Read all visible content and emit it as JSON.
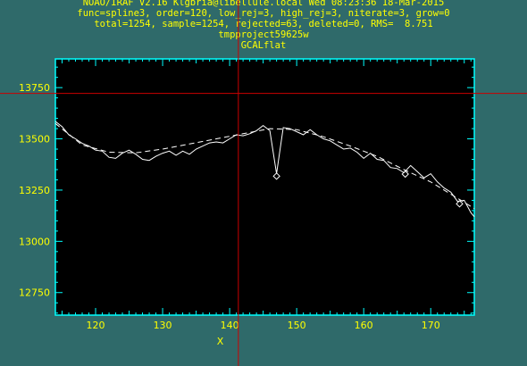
{
  "header": {
    "line1": "NOAO/IRAF V2.16 Klgbria@libellule.local Wed 08:23:36 18-Mar-2015",
    "line2": "func=spline3, order=120, low_rej=3, high_rej=3, niterate=3, grow=0",
    "line3": "total=1254, sample=1254, rejected=63, deleted=0, RMS=  8.751",
    "line4": "tmpproject59625w",
    "line5": "GCALflat"
  },
  "colors": {
    "background": "#2f6a6a",
    "frame": "#00ffff",
    "text": "#ffff00",
    "plot_bg": "#000000",
    "data_line": "#ffffff",
    "cursor": "#cc0000"
  },
  "chart_data": {
    "type": "line",
    "xlabel": "X",
    "ylabel": "",
    "xlim": [
      114,
      176.5
    ],
    "ylim": [
      12640,
      13890
    ],
    "xticks": [
      120,
      130,
      140,
      150,
      160,
      170
    ],
    "yticks": [
      12750,
      13000,
      13250,
      13500,
      13750
    ],
    "grid": false,
    "cursor": {
      "x": 141.3,
      "y": 13722
    },
    "series": [
      {
        "style": "solid",
        "x": [
          114,
          115,
          116,
          117,
          118,
          119,
          120,
          121,
          122,
          123,
          124,
          125,
          126,
          127,
          128,
          129,
          130,
          131,
          132,
          133,
          134,
          135,
          136,
          137,
          138,
          139,
          140,
          141,
          142,
          143,
          144,
          145,
          146,
          147,
          148,
          149,
          150,
          151,
          152,
          153,
          154,
          155,
          156,
          157,
          158,
          159,
          160,
          161,
          162,
          163,
          164,
          165,
          166,
          167,
          168,
          169,
          170,
          171,
          172,
          173,
          174,
          175,
          176,
          176.5
        ],
        "y": [
          13585,
          13560,
          13520,
          13500,
          13478,
          13465,
          13445,
          13440,
          13410,
          13405,
          13430,
          13445,
          13425,
          13400,
          13395,
          13415,
          13430,
          13440,
          13420,
          13440,
          13425,
          13450,
          13465,
          13480,
          13485,
          13480,
          13500,
          13520,
          13515,
          13525,
          13540,
          13565,
          13540,
          13330,
          13555,
          13550,
          13535,
          13520,
          13545,
          13520,
          13500,
          13490,
          13470,
          13450,
          13455,
          13435,
          13405,
          13430,
          13400,
          13395,
          13360,
          13355,
          13335,
          13370,
          13340,
          13310,
          13330,
          13290,
          13260,
          13240,
          13195,
          13200,
          13140,
          13120
        ]
      },
      {
        "style": "dashed",
        "x": [
          114,
          118,
          122,
          126,
          130,
          134,
          138,
          142,
          146,
          150,
          154,
          158,
          162,
          166,
          170,
          174,
          176.5
        ],
        "y": [
          13575,
          13470,
          13435,
          13432,
          13450,
          13475,
          13500,
          13525,
          13550,
          13545,
          13510,
          13465,
          13415,
          13350,
          13290,
          13210,
          13160
        ]
      }
    ],
    "rejected_points": [
      {
        "x": 147.0,
        "y": 13318
      },
      {
        "x": 166.2,
        "y": 13328
      },
      {
        "x": 174.3,
        "y": 13183
      }
    ]
  }
}
